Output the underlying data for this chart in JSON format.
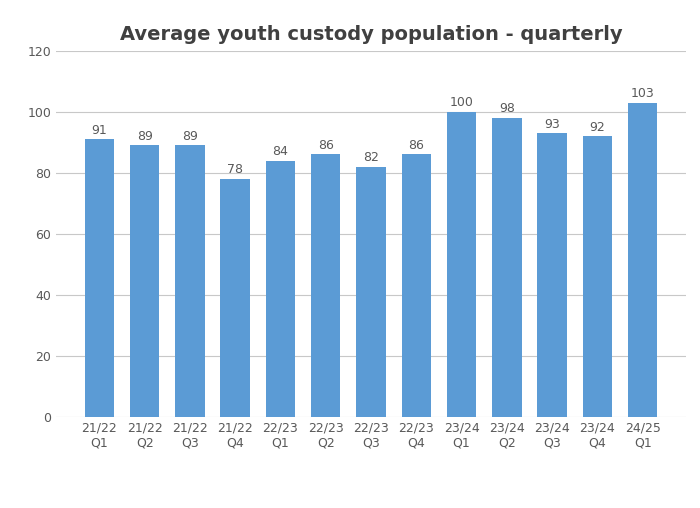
{
  "title": "Average youth custody population - quarterly",
  "categories": [
    "21/22\nQ1",
    "21/22\nQ2",
    "21/22\nQ3",
    "21/22\nQ4",
    "22/23\nQ1",
    "22/23\nQ2",
    "22/23\nQ3",
    "22/23\nQ4",
    "23/24\nQ1",
    "23/24\nQ2",
    "23/24\nQ3",
    "23/24\nQ4",
    "24/25\nQ1"
  ],
  "values": [
    91,
    89,
    89,
    78,
    84,
    86,
    82,
    86,
    100,
    98,
    93,
    92,
    103
  ],
  "bar_color": "#5b9bd5",
  "ylim": [
    0,
    120
  ],
  "yticks": [
    0,
    20,
    40,
    60,
    80,
    100,
    120
  ],
  "title_fontsize": 14,
  "tick_fontsize": 9,
  "label_fontsize": 9,
  "background_color": "#ffffff",
  "grid_color": "#c8c8c8",
  "text_color": "#595959",
  "title_color": "#404040"
}
